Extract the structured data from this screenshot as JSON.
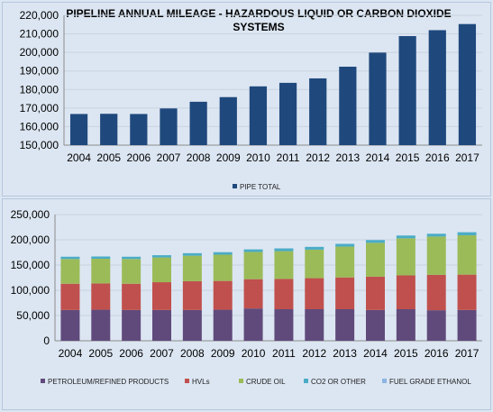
{
  "chart_data": [
    {
      "type": "bar",
      "title": "PIPELINE ANNUAL MILEAGE - HAZARDOUS LIQUID OR CARBON DIOXIDE SYSTEMS",
      "title_lines": [
        "PIPELINE ANNUAL MILEAGE - HAZARDOUS LIQUID OR CARBON DIOXIDE",
        "SYSTEMS"
      ],
      "categories": [
        "2004",
        "2005",
        "2006",
        "2007",
        "2008",
        "2009",
        "2010",
        "2011",
        "2012",
        "2013",
        "2014",
        "2015",
        "2016",
        "2017"
      ],
      "series": [
        {
          "name": "PIPE TOTAL",
          "color": "#1f497d",
          "values": [
            166800,
            166900,
            166800,
            169800,
            173400,
            175900,
            181700,
            183600,
            186000,
            192300,
            199900,
            208800,
            212000,
            215300
          ]
        }
      ],
      "ylim": [
        150000,
        220000
      ],
      "yticks": [
        "150,000",
        "160,000",
        "170,000",
        "180,000",
        "190,000",
        "200,000",
        "210,000",
        "220,000"
      ],
      "xlabel": "",
      "ylabel": "",
      "grid": true,
      "legend": "bottom"
    },
    {
      "type": "bar",
      "stacked": true,
      "title": "",
      "categories": [
        "2004",
        "2005",
        "2006",
        "2007",
        "2008",
        "2009",
        "2010",
        "2011",
        "2012",
        "2013",
        "2014",
        "2015",
        "2016",
        "2017"
      ],
      "series": [
        {
          "name": "PETROLEUM/REFINED PRODUCTS",
          "color": "#604a7b",
          "values": [
            61000,
            61500,
            61000,
            61000,
            61000,
            61500,
            64000,
            62500,
            62500,
            62500,
            61000,
            62500,
            60500,
            61000
          ]
        },
        {
          "name": "HVLs",
          "color": "#c0504d",
          "values": [
            52000,
            52000,
            52000,
            55000,
            57000,
            57000,
            58000,
            60000,
            61500,
            63000,
            66000,
            67000,
            70000,
            70000
          ]
        },
        {
          "name": "CRUDE OIL",
          "color": "#9bbb59",
          "values": [
            49000,
            49000,
            49000,
            49000,
            50500,
            52000,
            54000,
            55000,
            56500,
            61000,
            67000,
            73500,
            76000,
            78000
          ]
        },
        {
          "name": "CO2 OR OTHER",
          "color": "#4bacc6",
          "values": [
            4500,
            4500,
            4500,
            4500,
            5000,
            5000,
            5000,
            5500,
            5500,
            5500,
            5500,
            5500,
            5500,
            6000
          ]
        },
        {
          "name": "FUEL GRADE ETHANOL",
          "color": "#8eb4e3",
          "values": [
            0,
            0,
            0,
            0,
            0,
            0,
            0,
            0,
            0,
            0,
            0,
            0,
            0,
            0
          ]
        }
      ],
      "ylim": [
        0,
        250000
      ],
      "yticks": [
        "0",
        "50,000",
        "100,000",
        "150,000",
        "200,000",
        "250,000"
      ],
      "xlabel": "",
      "ylabel": "",
      "grid": true,
      "legend": "bottom"
    }
  ]
}
